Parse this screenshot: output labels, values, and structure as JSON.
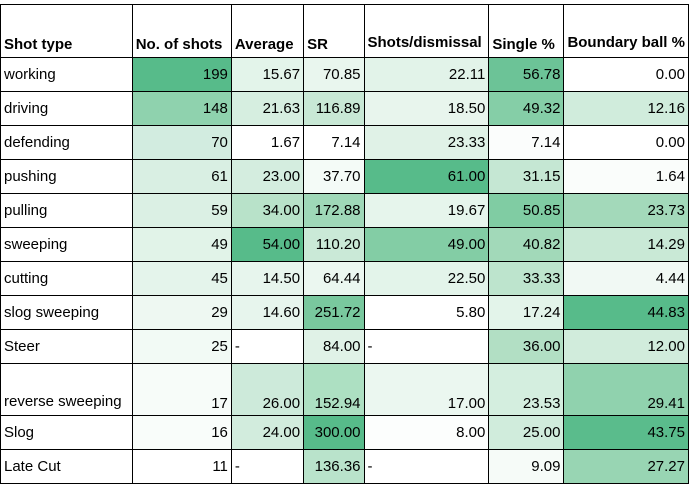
{
  "table": {
    "headers": [
      "Shot type",
      "No. of shots",
      "Average",
      "SR",
      "Shots/dismissal",
      "Single %",
      "Boundary ball %"
    ],
    "rows": [
      {
        "shot": "working",
        "shots": "199",
        "average": "15.67",
        "sr": "70.85",
        "shots_per_dismissal": "22.11",
        "single_pct": "56.78",
        "boundary_pct": "0.00",
        "colors": [
          "#ffffff",
          "#57bb8a",
          "#e3f4ea",
          "#e9f6ee",
          "#e2f3e9",
          "#6cc397",
          "#ffffff"
        ]
      },
      {
        "shot": "driving",
        "shots": "148",
        "average": "21.63",
        "sr": "116.89",
        "shots_per_dismissal": "18.50",
        "single_pct": "49.32",
        "boundary_pct": "12.16",
        "colors": [
          "#ffffff",
          "#8fd2ae",
          "#d6eee0",
          "#c8e8d5",
          "#e8f5ed",
          "#85cea7",
          "#d0ecdc"
        ]
      },
      {
        "shot": "defending",
        "shots": "70",
        "average": "1.67",
        "sr": "7.14",
        "shots_per_dismissal": "23.33",
        "single_pct": "7.14",
        "boundary_pct": "0.00",
        "colors": [
          "#ffffff",
          "#d2ece0",
          "#ffffff",
          "#ffffff",
          "#e0f2e7",
          "#fbfdfc",
          "#ffffff"
        ]
      },
      {
        "shot": "pushing",
        "shots": "61",
        "average": "23.00",
        "sr": "37.70",
        "shots_per_dismissal": "61.00",
        "single_pct": "31.15",
        "boundary_pct": "1.64",
        "colors": [
          "#ffffff",
          "#d9efe3",
          "#d4eddf",
          "#f4fbf7",
          "#57bb8a",
          "#c5e7d3",
          "#fafdfb"
        ]
      },
      {
        "shot": "pulling",
        "shots": "59",
        "average": "34.00",
        "sr": "172.88",
        "shots_per_dismissal": "19.67",
        "single_pct": "50.85",
        "boundary_pct": "23.73",
        "colors": [
          "#ffffff",
          "#dbf0e4",
          "#b8e2c9",
          "#9fd8b8",
          "#e6f5ec",
          "#80cca3",
          "#a3d9ba"
        ]
      },
      {
        "shot": "sweeping",
        "shots": "49",
        "average": "54.00",
        "sr": "110.20",
        "shots_per_dismissal": "49.00",
        "single_pct": "40.82",
        "boundary_pct": "14.29",
        "colors": [
          "#ffffff",
          "#e1f3e8",
          "#57bb8a",
          "#cae9d7",
          "#83cda5",
          "#a2d9b9",
          "#c9e9d6"
        ]
      },
      {
        "shot": "cutting",
        "shots": "45",
        "average": "14.50",
        "sr": "64.44",
        "shots_per_dismissal": "22.50",
        "single_pct": "33.33",
        "boundary_pct": "4.44",
        "colors": [
          "#ffffff",
          "#e4f4eb",
          "#e7f5ed",
          "#ebf7f0",
          "#e3f4ea",
          "#bde4cd",
          "#f1f9f4"
        ]
      },
      {
        "shot": "slog sweeping",
        "shots": "29",
        "average": "14.60",
        "sr": "251.72",
        "shots_per_dismissal": "5.80",
        "single_pct": "17.24",
        "boundary_pct": "44.83",
        "colors": [
          "#ffffff",
          "#eef8f2",
          "#e7f5ed",
          "#79c89e",
          "#ffffff",
          "#e3f4ea",
          "#57bb8a"
        ]
      },
      {
        "shot": "Steer",
        "shots": "25",
        "average": "-",
        "sr": "84.00",
        "shots_per_dismissal": "-",
        "single_pct": "36.00",
        "boundary_pct": "12.00",
        "colors": [
          "#ffffff",
          "#f2faf5",
          "#ffffff",
          "#e0f2e7",
          "#ffffff",
          "#b2dfc4",
          "#d1ecdc"
        ]
      },
      {
        "shot": "reverse sweeping",
        "shots": "17",
        "average": "26.00",
        "sr": "152.94",
        "shots_per_dismissal": "17.00",
        "single_pct": "23.53",
        "boundary_pct": "29.41",
        "colors": [
          "#ffffff",
          "#f7fcf9",
          "#cdeada",
          "#ade0c2",
          "#ebf7f0",
          "#d4eedf",
          "#90d2ae"
        ]
      },
      {
        "shot": "Slog",
        "shots": "16",
        "average": "24.00",
        "sr": "300.00",
        "shots_per_dismissal": "8.00",
        "single_pct": "25.00",
        "boundary_pct": "43.75",
        "colors": [
          "#ffffff",
          "#f9fdfa",
          "#d2ecdd",
          "#57bb8a",
          "#fcfefd",
          "#d0ecdc",
          "#5abc8c"
        ]
      },
      {
        "shot": "Late Cut",
        "shots": "11",
        "average": "-",
        "sr": "136.36",
        "shots_per_dismissal": "-",
        "single_pct": "9.09",
        "boundary_pct": "27.27",
        "colors": [
          "#ffffff",
          "#ffffff",
          "#ffffff",
          "#b9e3cb",
          "#ffffff",
          "#f6fbf8",
          "#98d5b3"
        ]
      }
    ]
  }
}
